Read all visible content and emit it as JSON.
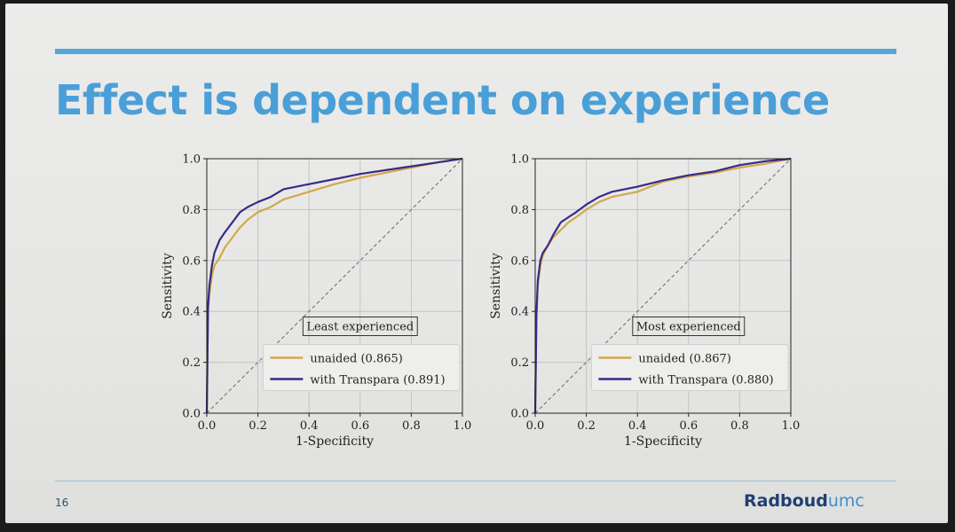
{
  "slide": {
    "title": "Effect is dependent on experience",
    "page_number": "16",
    "logo": {
      "word1": "Radboud",
      "word2": "umc"
    },
    "colors": {
      "accent": "#4a9fd8",
      "rule": "#55a6d9",
      "logo_dark": "#1f3f73"
    }
  },
  "chart_data": [
    {
      "type": "line",
      "title": "Least experienced",
      "xlabel": "1-Specificity",
      "ylabel": "Sensitivity",
      "xlim": [
        0,
        1
      ],
      "ylim": [
        0,
        1
      ],
      "xticks": [
        "0.0",
        "0.2",
        "0.4",
        "0.6",
        "0.8",
        "1.0"
      ],
      "yticks": [
        "0.0",
        "0.2",
        "0.4",
        "0.6",
        "0.8",
        "1.0"
      ],
      "grid": true,
      "legend_position": "bottom-right",
      "diagonal": true,
      "series": [
        {
          "name": "unaided (0.865)",
          "color": "#d4a84a",
          "x": [
            0,
            0.005,
            0.01,
            0.02,
            0.03,
            0.05,
            0.07,
            0.1,
            0.13,
            0.16,
            0.2,
            0.25,
            0.3,
            0.4,
            0.5,
            0.6,
            0.7,
            0.8,
            0.9,
            1.0
          ],
          "y": [
            0,
            0.4,
            0.47,
            0.54,
            0.58,
            0.61,
            0.65,
            0.69,
            0.73,
            0.76,
            0.79,
            0.81,
            0.84,
            0.87,
            0.9,
            0.925,
            0.945,
            0.965,
            0.985,
            1.0
          ]
        },
        {
          "name": "with Transpara (0.891)",
          "color": "#3a2a88",
          "x": [
            0,
            0.005,
            0.01,
            0.02,
            0.03,
            0.05,
            0.07,
            0.1,
            0.13,
            0.16,
            0.2,
            0.25,
            0.3,
            0.4,
            0.5,
            0.6,
            0.7,
            0.8,
            0.9,
            1.0
          ],
          "y": [
            0,
            0.42,
            0.5,
            0.58,
            0.63,
            0.68,
            0.71,
            0.75,
            0.79,
            0.81,
            0.83,
            0.85,
            0.88,
            0.9,
            0.92,
            0.94,
            0.955,
            0.97,
            0.985,
            1.0
          ]
        }
      ]
    },
    {
      "type": "line",
      "title": "Most experienced",
      "xlabel": "1-Specificity",
      "ylabel": "Sensitivity",
      "xlim": [
        0,
        1
      ],
      "ylim": [
        0,
        1
      ],
      "xticks": [
        "0.0",
        "0.2",
        "0.4",
        "0.6",
        "0.8",
        "1.0"
      ],
      "yticks": [
        "0.0",
        "0.2",
        "0.4",
        "0.6",
        "0.8",
        "1.0"
      ],
      "grid": true,
      "legend_position": "bottom-right",
      "diagonal": true,
      "series": [
        {
          "name": "unaided (0.867)",
          "color": "#d4a84a",
          "x": [
            0,
            0.005,
            0.01,
            0.02,
            0.03,
            0.05,
            0.07,
            0.1,
            0.13,
            0.16,
            0.2,
            0.25,
            0.3,
            0.4,
            0.5,
            0.6,
            0.7,
            0.8,
            0.9,
            1.0
          ],
          "y": [
            0,
            0.4,
            0.5,
            0.58,
            0.62,
            0.66,
            0.69,
            0.72,
            0.75,
            0.77,
            0.8,
            0.83,
            0.85,
            0.87,
            0.91,
            0.93,
            0.945,
            0.965,
            0.98,
            1.0
          ]
        },
        {
          "name": "with Transpara (0.880)",
          "color": "#3a2a88",
          "x": [
            0,
            0.005,
            0.01,
            0.02,
            0.03,
            0.05,
            0.07,
            0.1,
            0.13,
            0.16,
            0.2,
            0.25,
            0.3,
            0.4,
            0.5,
            0.6,
            0.7,
            0.8,
            0.9,
            1.0
          ],
          "y": [
            0,
            0.38,
            0.52,
            0.6,
            0.63,
            0.66,
            0.7,
            0.75,
            0.77,
            0.79,
            0.82,
            0.85,
            0.87,
            0.89,
            0.915,
            0.935,
            0.95,
            0.975,
            0.99,
            1.0
          ]
        }
      ]
    }
  ]
}
